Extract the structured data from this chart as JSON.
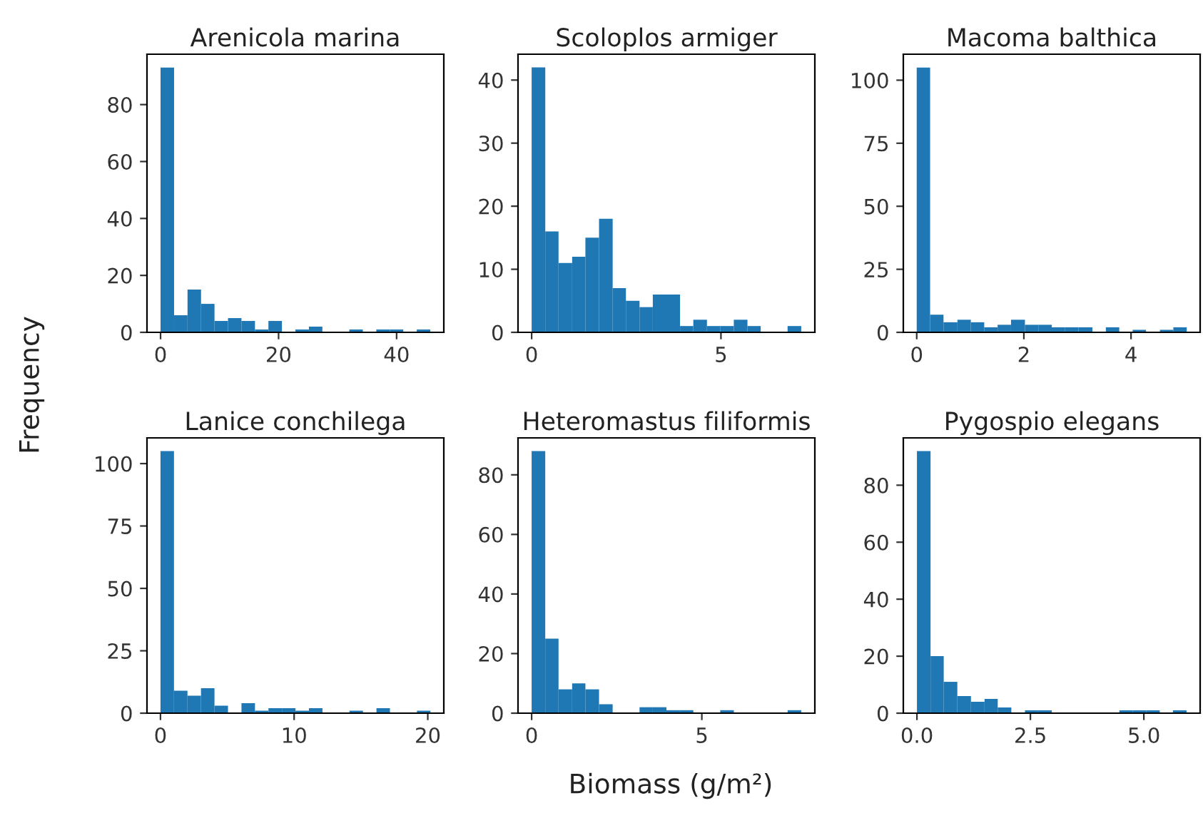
{
  "chart_data": [
    {
      "type": "histogram",
      "title": "Arenicola marina",
      "ylabel": "Frequency",
      "color": "#1f77b4",
      "bins": [
        0,
        2.29,
        4.57,
        6.86,
        9.14,
        11.43,
        13.71,
        16,
        18.28,
        20.57,
        22.85,
        25.14,
        27.42,
        31.99,
        34.28,
        36.56,
        38.85,
        41.13,
        43.42,
        45.7
      ],
      "values": [
        93,
        6,
        15,
        10,
        4,
        5,
        4,
        1,
        4,
        0,
        1,
        2,
        0,
        1,
        0,
        1,
        1,
        0,
        1
      ],
      "xlim": [
        -2.3,
        48
      ],
      "ylim": [
        0,
        97.7
      ],
      "xticks": [
        0,
        20,
        40
      ],
      "yticks": [
        0,
        20,
        40,
        60,
        80
      ],
      "grid": false,
      "legend": false
    },
    {
      "type": "histogram",
      "title": "Scoloplos armiger",
      "color": "#1f77b4",
      "bins": [
        0,
        0.36,
        0.71,
        1.07,
        1.42,
        1.78,
        2.14,
        2.49,
        2.85,
        3.2,
        3.56,
        3.92,
        4.27,
        4.63,
        4.98,
        5.34,
        5.7,
        6.05,
        6.76,
        7.12
      ],
      "values": [
        42,
        16,
        11,
        12,
        15,
        18,
        7,
        5,
        4,
        6,
        6,
        1,
        2,
        1,
        1,
        2,
        1,
        0,
        1
      ],
      "xlim": [
        -0.36,
        7.48
      ],
      "ylim": [
        0,
        44.1
      ],
      "xticks": [
        0,
        5
      ],
      "yticks": [
        0,
        10,
        20,
        30,
        40
      ],
      "grid": false,
      "legend": false
    },
    {
      "type": "histogram",
      "title": "Macoma balthica",
      "color": "#1f77b4",
      "bins": [
        0,
        0.25,
        0.5,
        0.76,
        1.01,
        1.26,
        1.51,
        1.76,
        2.02,
        2.27,
        2.52,
        2.77,
        3.02,
        3.28,
        3.53,
        3.78,
        4.03,
        4.28,
        4.54,
        4.79,
        5.04
      ],
      "values": [
        105,
        7,
        4,
        5,
        4,
        2,
        3,
        5,
        3,
        3,
        2,
        2,
        2,
        0,
        2,
        0,
        1,
        0,
        1,
        2
      ],
      "xlim": [
        -0.25,
        5.29
      ],
      "ylim": [
        0,
        110.3
      ],
      "xticks": [
        0,
        2,
        4
      ],
      "yticks": [
        0,
        25,
        50,
        75,
        100
      ],
      "grid": false,
      "legend": false
    },
    {
      "type": "histogram",
      "title": "Lanice conchilega",
      "color": "#1f77b4",
      "bins": [
        0,
        1.01,
        2.02,
        3.03,
        4.04,
        5.05,
        6.06,
        7.07,
        8.08,
        9.09,
        10.1,
        11.11,
        12.12,
        14.14,
        15.15,
        16.16,
        17.17,
        19.19,
        20.2
      ],
      "values": [
        105,
        9,
        7,
        10,
        3,
        0,
        4,
        1,
        2,
        2,
        1,
        2,
        0,
        1,
        0,
        2,
        0,
        1
      ],
      "xlim": [
        -1.01,
        21.2
      ],
      "ylim": [
        0,
        110.3
      ],
      "xticks": [
        0,
        10,
        20
      ],
      "yticks": [
        0,
        25,
        50,
        75,
        100
      ],
      "grid": false,
      "legend": false
    },
    {
      "type": "histogram",
      "title": "Heteromastus filiformis",
      "xlabel": "Biomass (g/m²)",
      "color": "#1f77b4",
      "bins": [
        0,
        0.4,
        0.79,
        1.19,
        1.58,
        1.98,
        2.38,
        3.17,
        3.56,
        3.96,
        4.36,
        4.75,
        5.54,
        5.94,
        7.52,
        7.92
      ],
      "values": [
        88,
        25,
        8,
        10,
        8,
        3,
        0,
        2,
        2,
        1,
        1,
        0,
        1,
        0,
        1
      ],
      "xlim": [
        -0.4,
        8.32
      ],
      "ylim": [
        0,
        92.4
      ],
      "xticks": [
        0,
        5
      ],
      "yticks": [
        0,
        20,
        40,
        60,
        80
      ],
      "grid": false,
      "legend": false
    },
    {
      "type": "histogram",
      "title": "Pygospio elegans",
      "color": "#1f77b4",
      "bins": [
        0,
        0.3,
        0.59,
        0.89,
        1.19,
        1.49,
        1.78,
        2.08,
        2.38,
        2.67,
        2.97,
        4.46,
        4.75,
        5.05,
        5.35,
        5.64,
        5.94
      ],
      "values": [
        92,
        20,
        11,
        6,
        4,
        5,
        2,
        0,
        1,
        1,
        0,
        1,
        1,
        1,
        0,
        1
      ],
      "xlim": [
        -0.3,
        6.24
      ],
      "ylim": [
        0,
        96.6
      ],
      "xticks": [
        {
          "value": 0,
          "label": "0.0"
        },
        {
          "value": 2.5,
          "label": "2.5"
        },
        {
          "value": 5,
          "label": "5.0"
        }
      ],
      "yticks": [
        0,
        20,
        40,
        60,
        80
      ],
      "grid": false,
      "legend": false
    }
  ]
}
